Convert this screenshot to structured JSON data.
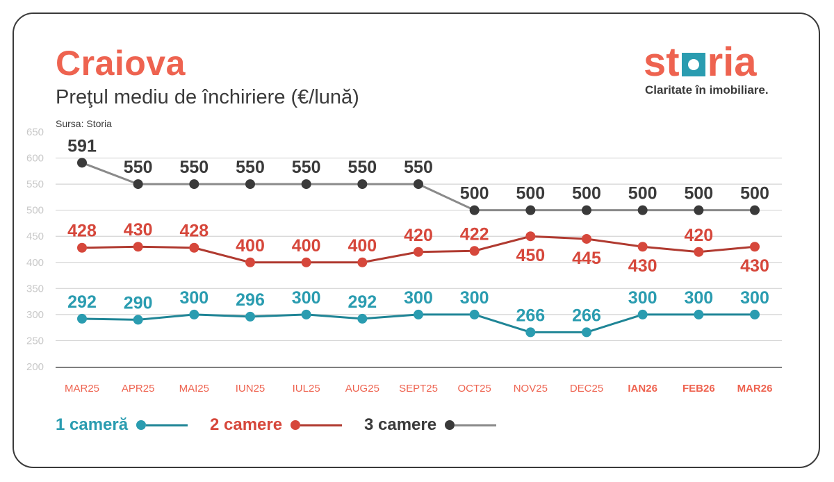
{
  "header": {
    "title": "Craiova",
    "subtitle": "Preţul mediu de închiriere (€/lună)",
    "source": "Sursa: Storia"
  },
  "logo": {
    "word_start": "st",
    "word_end": "ria",
    "tagline": "Claritate în imobiliare."
  },
  "chart_data": {
    "type": "line",
    "categories": [
      "MAR25",
      "APR25",
      "MAI25",
      "IUN25",
      "IUL25",
      "AUG25",
      "SEPT25",
      "OCT25",
      "NOV25",
      "DEC25",
      "IAN26",
      "FEB26",
      "MAR26"
    ],
    "bold_categories": [
      "IAN26",
      "FEB26",
      "MAR26"
    ],
    "ylim": [
      200,
      650
    ],
    "yticks": [
      200,
      250,
      300,
      350,
      400,
      450,
      500,
      550,
      600,
      650
    ],
    "grid": true,
    "series": [
      {
        "name": "3 camere",
        "values": [
          591,
          550,
          550,
          550,
          550,
          550,
          550,
          500,
          500,
          500,
          500,
          500,
          500
        ],
        "line_color": "#8a8a8a",
        "dot_color": "#3a3a3a",
        "label_color": "#3a3a3a",
        "label_pos": [
          "above",
          "above",
          "above",
          "above",
          "above",
          "above",
          "above",
          "above",
          "above",
          "above",
          "above",
          "above",
          "above"
        ]
      },
      {
        "name": "2 camere",
        "values": [
          428,
          430,
          428,
          400,
          400,
          400,
          420,
          422,
          450,
          445,
          430,
          420,
          430
        ],
        "line_color": "#b03a30",
        "dot_color": "#d6473b",
        "label_color": "#d6473b",
        "label_pos": [
          "above",
          "above",
          "above",
          "above",
          "above",
          "above",
          "above",
          "above",
          "below",
          "below",
          "below",
          "above",
          "below"
        ]
      },
      {
        "name": "1 cameră",
        "values": [
          292,
          290,
          300,
          296,
          300,
          292,
          300,
          300,
          266,
          266,
          300,
          300,
          300
        ],
        "line_color": "#1f8596",
        "dot_color": "#2a9cb0",
        "label_color": "#2a9cb0",
        "label_pos": [
          "above",
          "above",
          "above",
          "above",
          "above",
          "above",
          "above",
          "above",
          "above",
          "above",
          "above",
          "above",
          "above"
        ]
      }
    ]
  },
  "legend": [
    {
      "label": "1 cameră",
      "color": "#2a9cb0",
      "line_color": "#1f8596"
    },
    {
      "label": "2 camere",
      "color": "#d6473b",
      "line_color": "#b03a30"
    },
    {
      "label": "3 camere",
      "color": "#3a3a3a",
      "line_color": "#8a8a8a"
    }
  ],
  "colors": {
    "brand": "#ee6350",
    "axis_label": "#ee6350",
    "tick": "#c8c8c8",
    "grid": "#d4d4d4"
  }
}
